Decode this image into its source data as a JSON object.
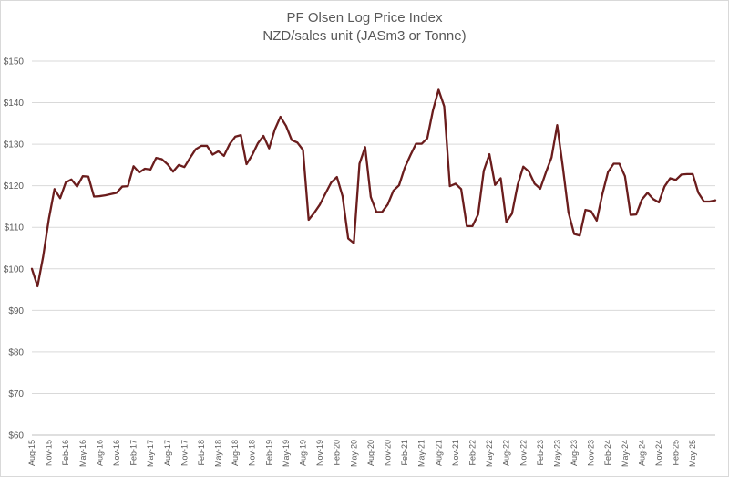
{
  "chart_data": {
    "type": "line",
    "title": "PF Olsen Log Price Index",
    "subtitle": "NZD/sales unit (JASm3 or Tonne)",
    "xlabel": "",
    "ylabel": "",
    "ylim": [
      60,
      150
    ],
    "y_ticks": [
      60,
      70,
      80,
      90,
      100,
      110,
      120,
      130,
      140,
      150
    ],
    "y_tick_labels": [
      "$60",
      "$70",
      "$80",
      "$90",
      "$100",
      "$110",
      "$120",
      "$130",
      "$140",
      "$150"
    ],
    "grid": "horizontal",
    "legend": "none",
    "line_color": "#6b1d1d",
    "x_tick_labels": [
      "Aug-15",
      "Nov-15",
      "Feb-16",
      "May-16",
      "Aug-16",
      "Nov-16",
      "Feb-17",
      "May-17",
      "Aug-17",
      "Nov-17",
      "Feb-18",
      "May-18",
      "Aug-18",
      "Nov-18",
      "Feb-19",
      "May-19",
      "Aug-19",
      "Nov-19",
      "Feb-20",
      "May-20",
      "Aug-20",
      "Nov-20",
      "Feb-21",
      "May-21",
      "Aug-21",
      "Nov-21",
      "Feb-22",
      "May-22",
      "Aug-22",
      "Nov-22",
      "Feb-23",
      "May-23",
      "Aug-23",
      "Nov-23",
      "Feb-24",
      "May-24",
      "Aug-24",
      "Nov-24",
      "Feb-25",
      "May-25"
    ],
    "x_start": "Aug-15",
    "series": [
      {
        "values": [
          100,
          95.8,
          103,
          112,
          119.2,
          117,
          120.8,
          121.5,
          119.8,
          122.3,
          122.2,
          117.4,
          117.5,
          117.7,
          118,
          118.3,
          119.8,
          119.9,
          124.7,
          123.2,
          124.1,
          123.9,
          126.7,
          126.4,
          125.2,
          123.4,
          125.0,
          124.5,
          126.7,
          128.8,
          129.6,
          129.6,
          127.5,
          128.3,
          127.2,
          130,
          131.8,
          132.2,
          125.2,
          127.4,
          130.2,
          132,
          129,
          133.5,
          136.6,
          134.4,
          131,
          130.4,
          128.6,
          111.8,
          113.5,
          115.5,
          118.2,
          120.8,
          122.1,
          117.5,
          107.3,
          106.2,
          125.3,
          129.3,
          117.3,
          113.7,
          113.7,
          115.5,
          118.8,
          120.1,
          124.3,
          127.3,
          130.1,
          130.1,
          131.4,
          138.1,
          143.1,
          139.1,
          119.9,
          120.5,
          119.2,
          110.3,
          110.3,
          113.1,
          123.6,
          127.6,
          120.2,
          121.8,
          111.3,
          113.3,
          120.2,
          124.6,
          123.4,
          120.5,
          119.3,
          123.2,
          126.8,
          134.6,
          124.5,
          113.6,
          108.4,
          108.0,
          114.2,
          113.9,
          111.6,
          118.0,
          123.3,
          125.3,
          125.3,
          122.3,
          113.0,
          113.1,
          116.7,
          118.3,
          116.8,
          116.0,
          119.8,
          121.8,
          121.4,
          122.7,
          122.8,
          122.8,
          118.3,
          116.2,
          116.2,
          116.5
        ]
      }
    ]
  }
}
